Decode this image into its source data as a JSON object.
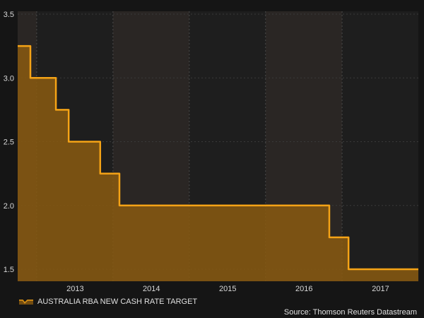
{
  "chart_data": {
    "type": "area",
    "series": [
      {
        "name": "AUSTRALIA RBA NEW CASH RATE TARGET",
        "step": true,
        "x": [
          "2012-04-01",
          "2012-05-01",
          "2012-06-01",
          "2012-10-01",
          "2012-12-01",
          "2013-05-01",
          "2013-08-01",
          "2016-05-01",
          "2016-08-01",
          "2017-07-01"
        ],
        "values": [
          3.25,
          3.25,
          3.0,
          2.75,
          2.5,
          2.25,
          2.0,
          1.75,
          1.5,
          1.5
        ]
      }
    ],
    "xticks": [
      "2013",
      "2014",
      "2015",
      "2016",
      "2017"
    ],
    "yticks": [
      "1.5",
      "2.0",
      "2.5",
      "3.0",
      "3.5"
    ],
    "ylim": [
      1.5,
      3.5
    ],
    "xlim": [
      "2012-04-01",
      "2017-07-01"
    ],
    "grid": true,
    "legend_position": "bottom-left",
    "colors": {
      "background": "#151515",
      "plot_band_light": "#2a2624",
      "plot_band_dark": "#1e1e1e",
      "line": "#f5a316",
      "fill": "#8a5a10",
      "text": "#d8d8d8"
    }
  },
  "legend": {
    "label": "AUSTRALIA RBA NEW CASH RATE TARGET"
  },
  "source": "Source: Thomson Reuters Datastream"
}
